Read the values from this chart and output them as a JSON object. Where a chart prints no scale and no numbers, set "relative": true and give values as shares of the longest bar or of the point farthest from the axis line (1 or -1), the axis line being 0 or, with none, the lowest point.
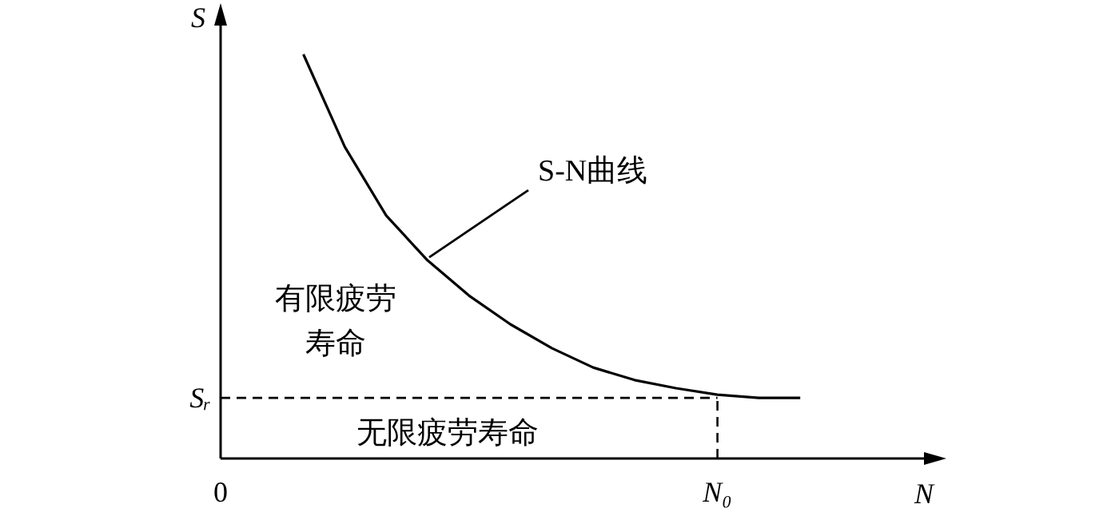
{
  "chart_data": {
    "type": "line",
    "relative": true,
    "xlabel": "N",
    "ylabel": "S",
    "line_style": "solid",
    "marker": "none",
    "categories": [
      "0",
      null,
      null,
      null,
      null,
      null,
      null,
      null,
      null,
      null,
      null,
      null,
      "N₀",
      null,
      null
    ],
    "series": [
      {
        "color": "#000000",
        "values": [
          null,
          null,
          1.0,
          0.771,
          0.601,
          0.49,
          0.403,
          0.332,
          0.273,
          0.225,
          0.194,
          0.174,
          0.158,
          0.15,
          0.15
        ]
      }
    ],
    "ref_lines": [
      {
        "axis": "y",
        "value": 0.15,
        "label": "Sᵣ",
        "line_style": "dashed",
        "color": "#000000"
      },
      {
        "axis": "x",
        "value": "N₀",
        "line_style": "dashed",
        "color": "#000000"
      }
    ],
    "annotations": [
      "S-N曲线",
      "有限疲劳寿命",
      "无限疲劳寿命"
    ]
  }
}
